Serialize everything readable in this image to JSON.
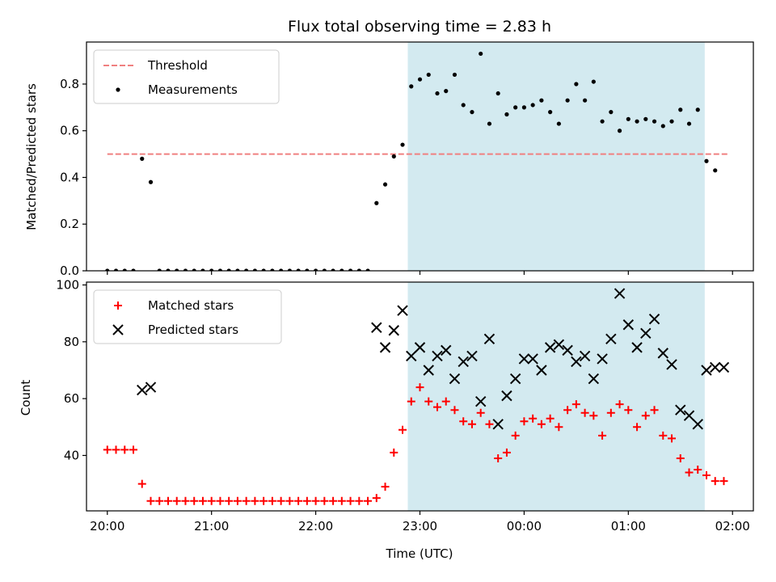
{
  "chart_data": [
    {
      "type": "scatter",
      "title": "Flux total observing time = 2.83 h",
      "xlabel": "",
      "ylabel": "Matched/Predicted stars",
      "ylim": [
        0,
        0.98
      ],
      "yticks": [
        "0.0",
        "0.2",
        "0.4",
        "0.6",
        "0.8"
      ],
      "legend_position": "upper-left",
      "observing_window": {
        "start": "22:53",
        "end": "01:44",
        "color": "#d3eaf0"
      },
      "threshold": {
        "name": "Threshold",
        "value": 0.5,
        "x_start": "20:00",
        "x_end": "01:58",
        "color": "#f08080"
      },
      "series": [
        {
          "name": "Measurements",
          "color": "#000000",
          "x": [
            "20:00",
            "20:05",
            "20:10",
            "20:15",
            "20:20",
            "20:25",
            "20:30",
            "20:35",
            "20:40",
            "20:45",
            "20:50",
            "20:55",
            "21:00",
            "21:05",
            "21:10",
            "21:15",
            "21:20",
            "21:25",
            "21:30",
            "21:35",
            "21:40",
            "21:45",
            "21:50",
            "21:55",
            "22:00",
            "22:05",
            "22:10",
            "22:15",
            "22:20",
            "22:25",
            "22:30",
            "22:35",
            "22:40",
            "22:45",
            "22:50",
            "22:55",
            "23:00",
            "23:05",
            "23:10",
            "23:15",
            "23:20",
            "23:25",
            "23:30",
            "23:35",
            "23:40",
            "23:45",
            "23:50",
            "23:55",
            "00:00",
            "00:05",
            "00:10",
            "00:15",
            "00:20",
            "00:25",
            "00:30",
            "00:35",
            "00:40",
            "00:45",
            "00:50",
            "00:55",
            "01:00",
            "01:05",
            "01:10",
            "01:15",
            "01:20",
            "01:25",
            "01:30",
            "01:35",
            "01:40",
            "01:45",
            "01:50"
          ],
          "values": [
            0.0,
            0.0,
            0.0,
            0.0,
            0.48,
            0.38,
            0.0,
            0.0,
            0.0,
            0.0,
            0.0,
            0.0,
            0.0,
            0.0,
            0.0,
            0.0,
            0.0,
            0.0,
            0.0,
            0.0,
            0.0,
            0.0,
            0.0,
            0.0,
            0.0,
            0.0,
            0.0,
            0.0,
            0.0,
            0.0,
            0.0,
            0.29,
            0.37,
            0.49,
            0.54,
            0.79,
            0.82,
            0.84,
            0.76,
            0.77,
            0.84,
            0.71,
            0.68,
            0.93,
            0.63,
            0.76,
            0.67,
            0.7,
            0.7,
            0.71,
            0.73,
            0.68,
            0.63,
            0.73,
            0.8,
            0.73,
            0.81,
            0.64,
            0.68,
            0.6,
            0.65,
            0.64,
            0.65,
            0.64,
            0.62,
            0.64,
            0.69,
            0.63,
            0.69,
            0.47,
            0.43
          ]
        }
      ]
    },
    {
      "type": "scatter",
      "title": "",
      "xlabel": "Time (UTC)",
      "ylabel": "Count",
      "ylim": [
        20.5,
        101
      ],
      "yticks": [
        "40",
        "60",
        "80",
        "100"
      ],
      "xticks": [
        "20:00",
        "21:00",
        "22:00",
        "23:00",
        "00:00",
        "01:00",
        "02:00"
      ],
      "xlim": [
        "19:48",
        "02:12"
      ],
      "legend_position": "upper-left",
      "observing_window": {
        "start": "22:53",
        "end": "01:44",
        "color": "#d3eaf0"
      },
      "series": [
        {
          "name": "Matched stars",
          "color": "#ff0000",
          "marker": "plus",
          "x": [
            "20:00",
            "20:05",
            "20:10",
            "20:15",
            "20:20",
            "20:25",
            "20:30",
            "20:35",
            "20:40",
            "20:45",
            "20:50",
            "20:55",
            "21:00",
            "21:05",
            "21:10",
            "21:15",
            "21:20",
            "21:25",
            "21:30",
            "21:35",
            "21:40",
            "21:45",
            "21:50",
            "21:55",
            "22:00",
            "22:05",
            "22:10",
            "22:15",
            "22:20",
            "22:25",
            "22:30",
            "22:35",
            "22:40",
            "22:45",
            "22:50",
            "22:55",
            "23:00",
            "23:05",
            "23:10",
            "23:15",
            "23:20",
            "23:25",
            "23:30",
            "23:35",
            "23:40",
            "23:45",
            "23:50",
            "23:55",
            "00:00",
            "00:05",
            "00:10",
            "00:15",
            "00:20",
            "00:25",
            "00:30",
            "00:35",
            "00:40",
            "00:45",
            "00:50",
            "00:55",
            "01:00",
            "01:05",
            "01:10",
            "01:15",
            "01:20",
            "01:25",
            "01:30",
            "01:35",
            "01:40",
            "01:45",
            "01:50",
            "01:55"
          ],
          "values": [
            42,
            42,
            42,
            42,
            30,
            24,
            24,
            24,
            24,
            24,
            24,
            24,
            24,
            24,
            24,
            24,
            24,
            24,
            24,
            24,
            24,
            24,
            24,
            24,
            24,
            24,
            24,
            24,
            24,
            24,
            24,
            25,
            29,
            41,
            49,
            59,
            64,
            59,
            57,
            59,
            56,
            52,
            51,
            55,
            51,
            39,
            41,
            47,
            52,
            53,
            51,
            53,
            50,
            56,
            58,
            55,
            54,
            47,
            55,
            58,
            56,
            50,
            54,
            56,
            47,
            46,
            39,
            34,
            35,
            33,
            31,
            31
          ]
        },
        {
          "name": "Predicted stars",
          "color": "#000000",
          "marker": "x",
          "x": [
            "20:20",
            "20:25",
            "22:35",
            "22:40",
            "22:45",
            "22:50",
            "22:55",
            "23:00",
            "23:05",
            "23:10",
            "23:15",
            "23:20",
            "23:25",
            "23:30",
            "23:35",
            "23:40",
            "23:45",
            "23:50",
            "23:55",
            "00:00",
            "00:05",
            "00:10",
            "00:15",
            "00:20",
            "00:25",
            "00:30",
            "00:35",
            "00:40",
            "00:45",
            "00:50",
            "00:55",
            "01:00",
            "01:05",
            "01:10",
            "01:15",
            "01:20",
            "01:25",
            "01:30",
            "01:35",
            "01:40",
            "01:45",
            "01:50",
            "01:55"
          ],
          "values": [
            63,
            64,
            85,
            78,
            84,
            91,
            75,
            78,
            70,
            75,
            77,
            67,
            73,
            75,
            59,
            81,
            51,
            61,
            67,
            74,
            74,
            70,
            78,
            79,
            77,
            73,
            75,
            67,
            74,
            81,
            97,
            86,
            78,
            83,
            88,
            76,
            72,
            56,
            54,
            51,
            70,
            71,
            71
          ]
        }
      ]
    }
  ]
}
